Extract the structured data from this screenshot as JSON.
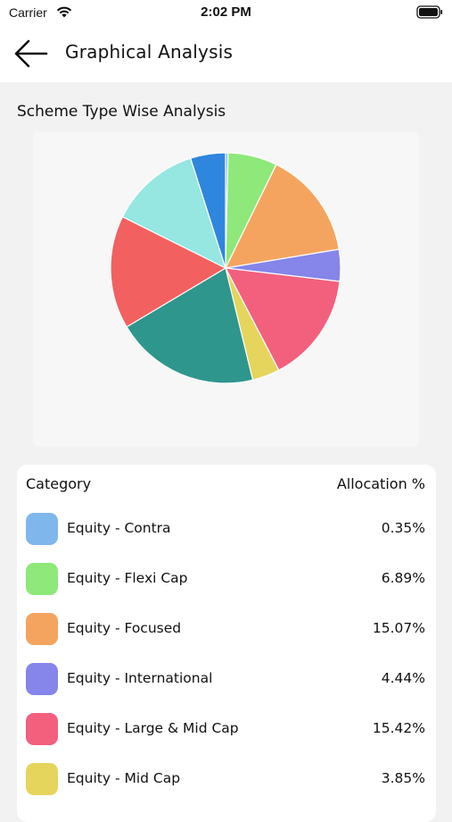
{
  "status_bar": {
    "carrier": "Carrier",
    "time": "2:02 PM"
  },
  "header": {
    "title": "Graphical Analysis"
  },
  "section": {
    "title": "Scheme Type Wise Analysis"
  },
  "table": {
    "col_category": "Category",
    "col_allocation": "Allocation %",
    "rows": [
      {
        "label": "Equity - Contra",
        "value": "0.35%",
        "color": "#7fb6ec"
      },
      {
        "label": "Equity - Flexi Cap",
        "value": "6.89%",
        "color": "#8ee87a"
      },
      {
        "label": "Equity - Focused",
        "value": "15.07%",
        "color": "#f5a460"
      },
      {
        "label": "Equity - International",
        "value": "4.44%",
        "color": "#8585ea"
      },
      {
        "label": "Equity - Large & Mid Cap",
        "value": "15.42%",
        "color": "#f2607e"
      },
      {
        "label": "Equity - Mid Cap",
        "value": "3.85%",
        "color": "#e5d55c"
      }
    ]
  },
  "chart_data": {
    "type": "pie",
    "title": "Scheme Type Wise Analysis",
    "slices": [
      {
        "label": "Equity - Contra",
        "value": 0.35,
        "color": "#7fb6ec"
      },
      {
        "label": "Equity - Flexi Cap",
        "value": 6.89,
        "color": "#8ee87a"
      },
      {
        "label": "Equity - Focused",
        "value": 15.07,
        "color": "#f5a460"
      },
      {
        "label": "Equity - International",
        "value": 4.44,
        "color": "#8585ea"
      },
      {
        "label": "Equity - Large & Mid Cap",
        "value": 15.42,
        "color": "#f2607e"
      },
      {
        "label": "Equity - Mid Cap",
        "value": 3.85,
        "color": "#e5d55c"
      },
      {
        "label": "",
        "value": 20.2,
        "color": "#2f968d"
      },
      {
        "label": "",
        "value": 15.8,
        "color": "#f26060"
      },
      {
        "label": "",
        "value": 12.7,
        "color": "#96e6e1"
      },
      {
        "label": "",
        "value": 4.9,
        "color": "#2e86de"
      }
    ]
  }
}
